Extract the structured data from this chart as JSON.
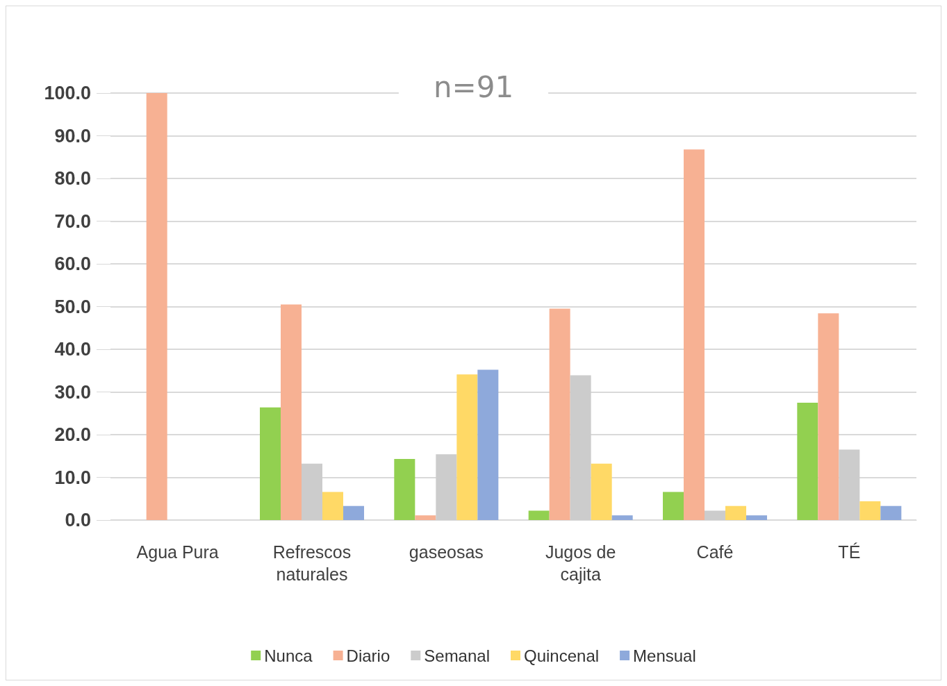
{
  "chart_data": {
    "type": "bar",
    "title": "n=91",
    "categories": [
      "Agua Pura",
      "Refrescos\nnaturales",
      "gaseosas",
      "Jugos de\ncajita",
      "Café",
      "TÉ"
    ],
    "series": [
      {
        "name": "Nunca",
        "color": "#92d050",
        "values": [
          0,
          26.4,
          14.3,
          2.2,
          6.6,
          27.5
        ]
      },
      {
        "name": "Diario",
        "color": "#f7b193",
        "values": [
          100,
          50.5,
          1.1,
          49.5,
          86.8,
          48.4
        ]
      },
      {
        "name": "Semanal",
        "color": "#cccccc",
        "values": [
          0,
          13.2,
          15.4,
          33.9,
          2.2,
          16.5
        ]
      },
      {
        "name": "Quincenal",
        "color": "#ffd966",
        "values": [
          0,
          6.6,
          34.1,
          13.2,
          3.3,
          4.4
        ]
      },
      {
        "name": "Mensual",
        "color": "#8ea9db",
        "values": [
          0,
          3.3,
          35.2,
          1.1,
          1.1,
          3.3
        ]
      }
    ],
    "ylim": [
      0,
      100
    ],
    "yticks": [
      {
        "value": 0,
        "label": "0.0"
      },
      {
        "value": 10,
        "label": "10.0"
      },
      {
        "value": 20,
        "label": "20.0"
      },
      {
        "value": 30,
        "label": "30.0"
      },
      {
        "value": 40,
        "label": "40.0"
      },
      {
        "value": 50,
        "label": "50.0"
      },
      {
        "value": 60,
        "label": "60.0"
      },
      {
        "value": 70,
        "label": "70.0"
      },
      {
        "value": 80,
        "label": "80.0"
      },
      {
        "value": 90,
        "label": "90.0"
      },
      {
        "value": 100,
        "label": "100.0"
      }
    ],
    "grid": "y",
    "legend": "bottom"
  }
}
